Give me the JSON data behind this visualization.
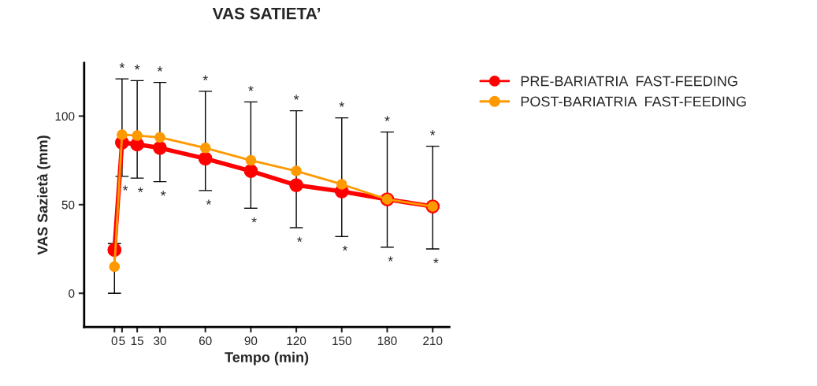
{
  "chart_data": {
    "type": "line",
    "title": "VAS SATIETA’",
    "xlabel": "Tempo (min)",
    "ylabel": "VAS Sazietà (mm)",
    "x": [
      0,
      5,
      15,
      30,
      60,
      90,
      120,
      150,
      180,
      210
    ],
    "series": [
      {
        "name": "PRE-BARIATRIA  FAST-FEEDING",
        "color": "#ff0000",
        "values": [
          24.5,
          85,
          84,
          82,
          76,
          69,
          61,
          57.5,
          53,
          49
        ]
      },
      {
        "name": "POST-BARIATRIA  FAST-FEEDING",
        "color": "#ff9900",
        "values": [
          15,
          89.5,
          89,
          88,
          82,
          75,
          69,
          61.5,
          53,
          49
        ],
        "errors": [
          [
            0,
            28
          ],
          [
            66,
            121
          ],
          [
            65,
            120
          ],
          [
            63,
            119
          ],
          [
            58,
            114
          ],
          [
            48,
            108
          ],
          [
            37,
            103
          ],
          [
            32,
            99
          ],
          [
            26,
            91
          ],
          [
            25,
            83
          ]
        ]
      }
    ],
    "annotations": [
      {
        "text": "*",
        "x": 5,
        "y": 121
      },
      {
        "text": "*",
        "x": 5,
        "y": 66
      },
      {
        "text": "*",
        "x": 15,
        "y": 120
      },
      {
        "text": "*",
        "x": 15,
        "y": 65
      },
      {
        "text": "*",
        "x": 30,
        "y": 119
      },
      {
        "text": "*",
        "x": 30,
        "y": 63
      },
      {
        "text": "*",
        "x": 60,
        "y": 114
      },
      {
        "text": "*",
        "x": 60,
        "y": 58
      },
      {
        "text": "*",
        "x": 90,
        "y": 108
      },
      {
        "text": "*",
        "x": 90,
        "y": 48
      },
      {
        "text": "*",
        "x": 120,
        "y": 103
      },
      {
        "text": "*",
        "x": 120,
        "y": 37
      },
      {
        "text": "*",
        "x": 150,
        "y": 99
      },
      {
        "text": "*",
        "x": 150,
        "y": 32
      },
      {
        "text": "*",
        "x": 180,
        "y": 91
      },
      {
        "text": "*",
        "x": 180,
        "y": 26
      },
      {
        "text": "*",
        "x": 210,
        "y": 83
      },
      {
        "text": "*",
        "x": 210,
        "y": 25
      }
    ],
    "xlim": [
      -20,
      221
    ],
    "ylim": [
      -19,
      130
    ],
    "xticks": [
      0,
      5,
      15,
      30,
      60,
      90,
      120,
      150,
      180,
      210
    ],
    "yticks": [
      0,
      50,
      100
    ],
    "marker": "circle",
    "line_style": "solid",
    "grid": false,
    "legend": "right"
  }
}
